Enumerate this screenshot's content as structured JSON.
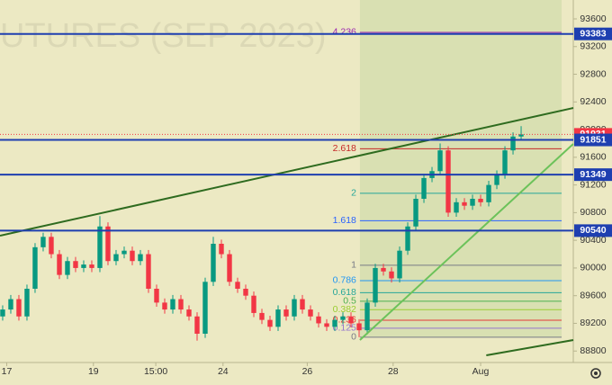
{
  "chart_data": {
    "type": "candlestick",
    "watermark": "UTURES (SEP 2023)",
    "xlim": [
      -0.33,
      70.44
    ],
    "xticks": [
      {
        "value": 0.5,
        "label": "17"
      },
      {
        "value": 11.2,
        "label": "19"
      },
      {
        "value": 18.9,
        "label": "15:00"
      },
      {
        "value": 27.2,
        "label": "24"
      },
      {
        "value": 37.6,
        "label": "26"
      },
      {
        "value": 48.2,
        "label": "28"
      },
      {
        "value": 59,
        "label": "Aug"
      }
    ],
    "ylim": [
      88634,
      93873
    ],
    "yticks": [
      88800,
      89200,
      89600,
      90000,
      90400,
      90800,
      91200,
      91600,
      92000,
      92400,
      92800,
      93200,
      93600
    ],
    "up_color": "#089981",
    "down_color": "#f23645",
    "open": [
      89300,
      89400,
      89550,
      89300,
      89700,
      90300,
      90450,
      90200,
      89900,
      90100,
      90000,
      90050,
      90000,
      90600,
      90100,
      90200,
      90250,
      90100,
      90200,
      89700,
      89500,
      89400,
      89550,
      89400,
      89300,
      89050,
      89800,
      90350,
      90200,
      89800,
      89700,
      89600,
      89350,
      89250,
      89150,
      89400,
      89300,
      89550,
      89400,
      89300,
      89200,
      89150,
      89250,
      89300,
      89200,
      89100,
      89500,
      90000,
      89950,
      89850,
      90250,
      90600,
      91000,
      91300,
      91400,
      91700,
      90800,
      90950,
      90900,
      91000,
      90950,
      91200,
      91350,
      91700,
      91900
    ],
    "high": [
      89460,
      89610,
      89610,
      89760,
      90360,
      90510,
      90510,
      90260,
      90160,
      90160,
      90110,
      90110,
      90750,
      90660,
      90260,
      90310,
      90310,
      90260,
      90260,
      89760,
      89560,
      89610,
      89610,
      89460,
      89360,
      89860,
      90450,
      90410,
      90260,
      89860,
      89760,
      89660,
      89410,
      89310,
      89460,
      89460,
      89610,
      89610,
      89460,
      89360,
      89260,
      89310,
      89360,
      89360,
      89260,
      89560,
      90060,
      90060,
      90010,
      90310,
      90660,
      91060,
      91360,
      91460,
      91800,
      91760,
      91010,
      91010,
      91060,
      91060,
      91260,
      91410,
      91760,
      91960,
      92050
    ],
    "low": [
      89240,
      89340,
      89240,
      89240,
      89640,
      90240,
      90140,
      89840,
      89840,
      89940,
      89940,
      89940,
      89940,
      90040,
      90040,
      90140,
      90040,
      90040,
      89640,
      89440,
      89340,
      89340,
      89340,
      89240,
      88950,
      88990,
      89740,
      90140,
      89740,
      89640,
      89540,
      89290,
      89190,
      89090,
      89090,
      89240,
      89240,
      89340,
      89240,
      89140,
      89090,
      89090,
      89190,
      89140,
      89000,
      89040,
      89440,
      89890,
      89790,
      89790,
      90190,
      90540,
      90940,
      91240,
      91340,
      90740,
      90740,
      90840,
      90840,
      90890,
      90890,
      91140,
      91290,
      91640,
      91840
    ],
    "close": [
      89400,
      89550,
      89300,
      89700,
      90300,
      90450,
      90200,
      89900,
      90100,
      90000,
      90050,
      90000,
      90600,
      90100,
      90200,
      90250,
      90100,
      90200,
      89700,
      89500,
      89400,
      89550,
      89400,
      89300,
      89050,
      89800,
      90350,
      90200,
      89800,
      89700,
      89600,
      89350,
      89250,
      89150,
      89400,
      89300,
      89550,
      89400,
      89300,
      89200,
      89150,
      89250,
      89300,
      89200,
      89100,
      89500,
      90000,
      89950,
      89850,
      90250,
      90600,
      91000,
      91300,
      91400,
      91700,
      90800,
      90950,
      90900,
      91000,
      90950,
      91200,
      91350,
      91700,
      91900,
      91931
    ],
    "price_lines": [
      {
        "value": 93383,
        "color": "#1e3fb0"
      },
      {
        "value": 91931,
        "color": "#f23645"
      },
      {
        "value": 91851,
        "color": "#1e3fb0"
      },
      {
        "value": 91349,
        "color": "#1e3fb0"
      },
      {
        "value": 90540,
        "color": "#1e3fb0"
      }
    ],
    "fib": {
      "start": 89000,
      "end": 90040,
      "x_from": 44.1,
      "x_to": 69,
      "levels": [
        {
          "ratio": 4.236,
          "color": "#9c27b0"
        },
        {
          "ratio": 2.618,
          "color": "#c62828"
        },
        {
          "ratio": 2,
          "color": "#26a69a"
        },
        {
          "ratio": 1.618,
          "color": "#2962ff"
        },
        {
          "ratio": 1,
          "color": "#787b86"
        },
        {
          "ratio": 0.786,
          "color": "#2196f3"
        },
        {
          "ratio": 0.618,
          "color": "#26a69a"
        },
        {
          "ratio": 0.5,
          "color": "#4caf50"
        },
        {
          "ratio": 0.382,
          "color": "#9acd32"
        },
        {
          "ratio": 0.236,
          "color": "#e53935"
        },
        {
          "ratio": 0.125,
          "color": "#9575cd"
        },
        {
          "ratio": 0,
          "color": "#787b86"
        }
      ]
    },
    "trendlines": [
      {
        "x": [
          -0.33,
          70.44
        ],
        "y": [
          90467,
          92313
        ],
        "color": "#2e6b1f"
      },
      {
        "x": [
          44.1,
          70.44
        ],
        "y": [
          88959,
          91793
        ],
        "color": "#6cc25a"
      },
      {
        "x": [
          59.7,
          70.44
        ],
        "y": [
          88738,
          88959
        ],
        "color": "#2e6b1f"
      }
    ]
  }
}
